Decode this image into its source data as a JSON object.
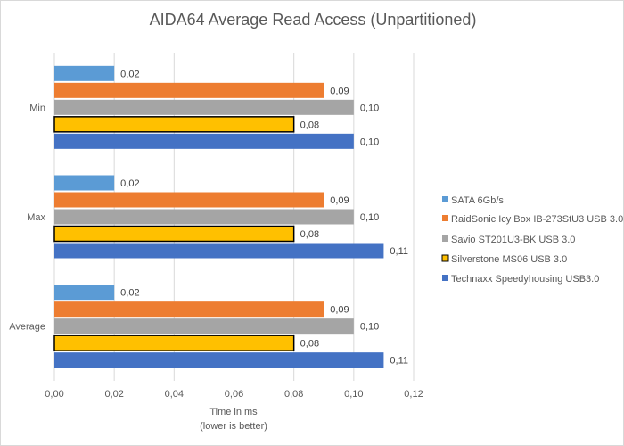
{
  "chart_data": {
    "type": "bar",
    "orientation": "horizontal",
    "title": "AIDA64 Average Read Access (Unpartitioned)",
    "xlabel": "Time in ms",
    "xlabel_note": "(lower is better)",
    "ylabel": "",
    "xlim": [
      0,
      0.12
    ],
    "x_ticks": [
      "0,00",
      "0,02",
      "0,04",
      "0,06",
      "0,08",
      "0,10",
      "0,12"
    ],
    "x_tick_values": [
      0,
      0.02,
      0.04,
      0.06,
      0.08,
      0.1,
      0.12
    ],
    "grid": true,
    "legend_position": "right",
    "categories": [
      "Min",
      "Max",
      "Average"
    ],
    "series": [
      {
        "name": "SATA 6Gb/s",
        "color": "#5b9bd5",
        "outline": false,
        "values": [
          0.02,
          0.02,
          0.02
        ],
        "labels": [
          "0,02",
          "0,02",
          "0,02"
        ]
      },
      {
        "name": "RaidSonic Icy Box IB-273StU3 USB 3.0",
        "color": "#ed7d31",
        "outline": false,
        "values": [
          0.09,
          0.09,
          0.09
        ],
        "labels": [
          "0,09",
          "0,09",
          "0,09"
        ]
      },
      {
        "name": "Savio ST201U3-BK USB 3.0",
        "color": "#a5a5a5",
        "outline": false,
        "values": [
          0.1,
          0.1,
          0.1
        ],
        "labels": [
          "0,10",
          "0,10",
          "0,10"
        ]
      },
      {
        "name": "Silverstone MS06 USB 3.0",
        "color": "#ffc000",
        "outline": true,
        "values": [
          0.08,
          0.08,
          0.08
        ],
        "labels": [
          "0,08",
          "0,08",
          "0,08"
        ]
      },
      {
        "name": "Technaxx Speedyhousing USB3.0",
        "color": "#4472c4",
        "outline": false,
        "values": [
          0.1,
          0.11,
          0.11
        ],
        "labels": [
          "0,10",
          "0,11",
          "0,11"
        ]
      }
    ]
  }
}
